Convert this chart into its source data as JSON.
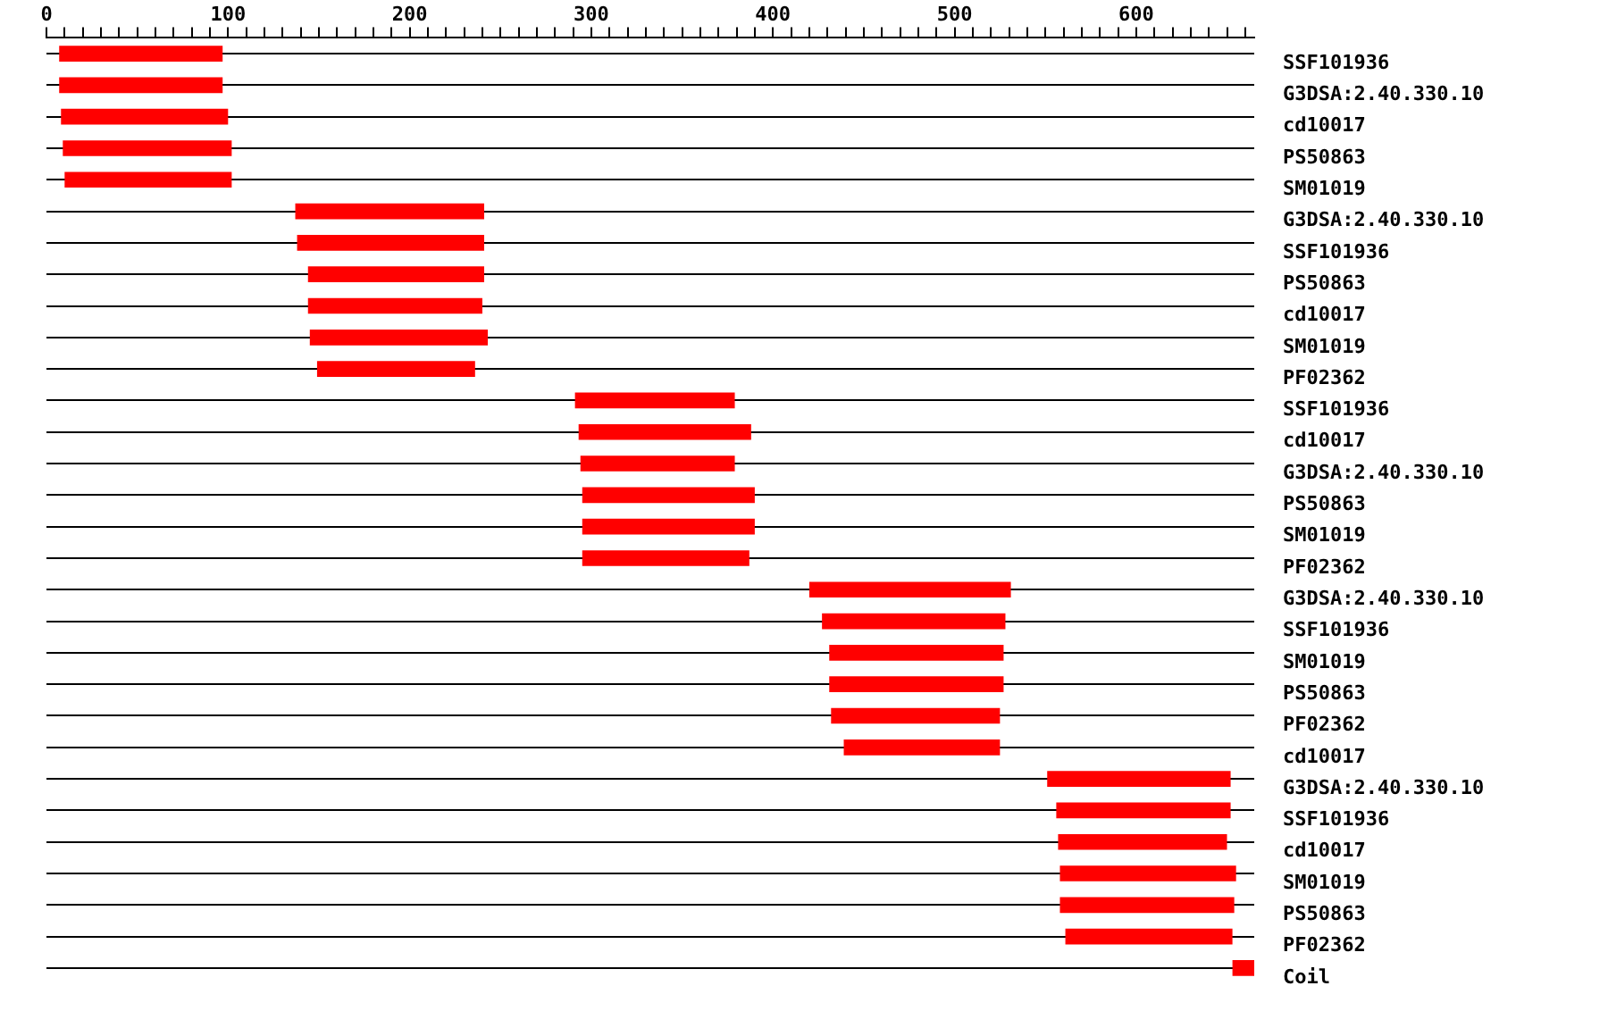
{
  "chart_data": {
    "type": "bar",
    "orientation": "horizontal",
    "color": "#ff0000",
    "categories": [
      "SSF101936",
      "G3DSA:2.40.330.10",
      "cd10017",
      "PS50863",
      "SM01019",
      "G3DSA:2.40.330.10",
      "SSF101936",
      "PS50863",
      "cd10017",
      "SM01019",
      "PF02362",
      "SSF101936",
      "cd10017",
      "G3DSA:2.40.330.10",
      "PS50863",
      "SM01019",
      "PF02362",
      "G3DSA:2.40.330.10",
      "SSF101936",
      "SM01019",
      "PS50863",
      "PF02362",
      "cd10017",
      "G3DSA:2.40.330.10",
      "SSF101936",
      "cd10017",
      "SM01019",
      "PS50863",
      "PF02362",
      "Coil"
    ],
    "base": [
      7,
      7,
      8,
      9,
      10,
      137,
      138,
      144,
      144,
      145,
      149,
      291,
      293,
      294,
      295,
      295,
      295,
      420,
      427,
      431,
      431,
      432,
      439,
      551,
      556,
      557,
      558,
      558,
      561,
      653
    ],
    "values": [
      90,
      90,
      92,
      93,
      92,
      104,
      103,
      97,
      96,
      98,
      87,
      88,
      95,
      85,
      95,
      95,
      92,
      111,
      101,
      96,
      96,
      93,
      86,
      101,
      96,
      93,
      97,
      96,
      92,
      12
    ],
    "xlim": [
      0,
      665
    ],
    "xticks": [
      0,
      {
        "value": 10,
        "label": null
      },
      {
        "value": 20,
        "label": null
      },
      {
        "value": 30,
        "label": null
      },
      {
        "value": 40,
        "label": null
      },
      {
        "value": 50,
        "label": null
      },
      {
        "value": 60,
        "label": null
      },
      {
        "value": 70,
        "label": null
      },
      {
        "value": 80,
        "label": null
      },
      {
        "value": 90,
        "label": null
      },
      100,
      {
        "value": 110,
        "label": null
      },
      {
        "value": 120,
        "label": null
      },
      {
        "value": 130,
        "label": null
      },
      {
        "value": 140,
        "label": null
      },
      {
        "value": 150,
        "label": null
      },
      {
        "value": 160,
        "label": null
      },
      {
        "value": 170,
        "label": null
      },
      {
        "value": 180,
        "label": null
      },
      {
        "value": 190,
        "label": null
      },
      200,
      {
        "value": 210,
        "label": null
      },
      {
        "value": 220,
        "label": null
      },
      {
        "value": 230,
        "label": null
      },
      {
        "value": 240,
        "label": null
      },
      {
        "value": 250,
        "label": null
      },
      {
        "value": 260,
        "label": null
      },
      {
        "value": 270,
        "label": null
      },
      {
        "value": 280,
        "label": null
      },
      {
        "value": 290,
        "label": null
      },
      300,
      {
        "value": 310,
        "label": null
      },
      {
        "value": 320,
        "label": null
      },
      {
        "value": 330,
        "label": null
      },
      {
        "value": 340,
        "label": null
      },
      {
        "value": 350,
        "label": null
      },
      {
        "value": 360,
        "label": null
      },
      {
        "value": 370,
        "label": null
      },
      {
        "value": 380,
        "label": null
      },
      {
        "value": 390,
        "label": null
      },
      400,
      {
        "value": 410,
        "label": null
      },
      {
        "value": 420,
        "label": null
      },
      {
        "value": 430,
        "label": null
      },
      {
        "value": 440,
        "label": null
      },
      {
        "value": 450,
        "label": null
      },
      {
        "value": 460,
        "label": null
      },
      {
        "value": 470,
        "label": null
      },
      {
        "value": 480,
        "label": null
      },
      {
        "value": 490,
        "label": null
      },
      500,
      {
        "value": 510,
        "label": null
      },
      {
        "value": 520,
        "label": null
      },
      {
        "value": 530,
        "label": null
      },
      {
        "value": 540,
        "label": null
      },
      {
        "value": 550,
        "label": null
      },
      {
        "value": 560,
        "label": null
      },
      {
        "value": 570,
        "label": null
      },
      {
        "value": 580,
        "label": null
      },
      {
        "value": 590,
        "label": null
      },
      600,
      {
        "value": 610,
        "label": null
      },
      {
        "value": 620,
        "label": null
      },
      {
        "value": 630,
        "label": null
      },
      {
        "value": 640,
        "label": null
      },
      {
        "value": 650,
        "label": null
      },
      {
        "value": 660,
        "label": null
      }
    ],
    "grid": "y",
    "legend": false
  }
}
